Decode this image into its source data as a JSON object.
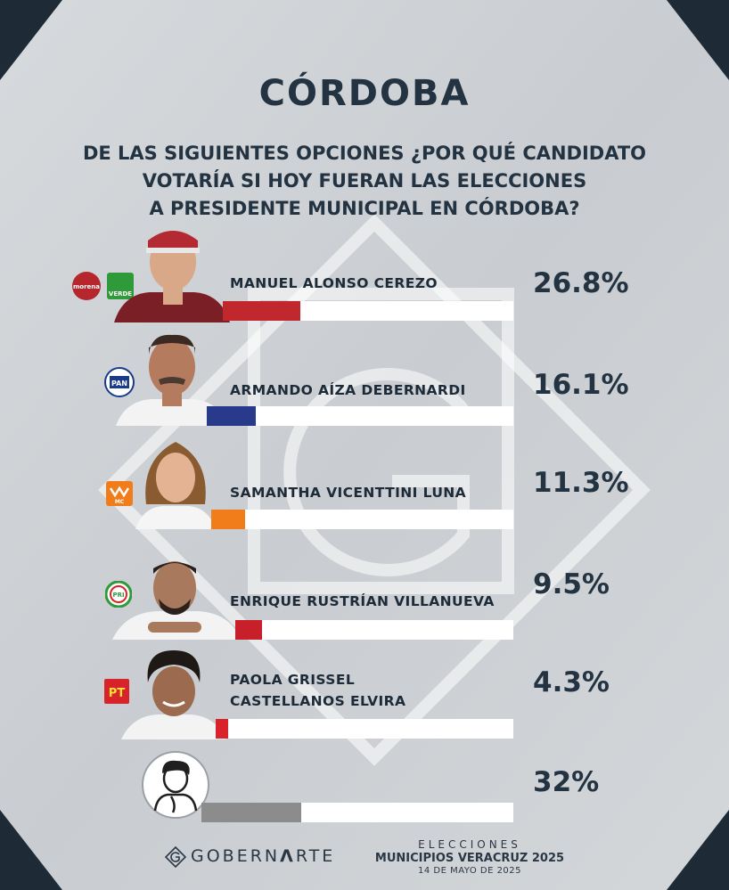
{
  "header": {
    "title": "CÓRDOBA",
    "question_lines": [
      "DE LAS SIGUIENTES OPCIONES ¿POR QUÉ CANDIDATO",
      "VOTARÍA SI HOY FUERAN LAS ELECCIONES",
      "A PRESIDENTE MUNICIPAL EN CÓRDOBA?"
    ]
  },
  "chart_data": {
    "type": "bar",
    "orientation": "horizontal",
    "title": "CÓRDOBA",
    "categories": [
      "MANUEL ALONSO CEREZO",
      "ARMANDO AÍZA DEBERNARDI",
      "SAMANTHA VICENTTINI LUNA",
      "ENRIQUE RUSTRÍAN VILLANUEVA",
      "PAOLA GRISSEL CASTELLANOS ELVIRA",
      ""
    ],
    "values": [
      26.8,
      16.1,
      11.3,
      9.5,
      4.3,
      32
    ],
    "value_labels": [
      "26.8%",
      "16.1%",
      "11.3%",
      "9.5%",
      "4.3%",
      "32%"
    ],
    "colors": [
      "#c0282d",
      "#283a8c",
      "#f07d1a",
      "#c8202a",
      "#d8232a",
      "#8c8c8c"
    ],
    "xlim": [
      0,
      100
    ]
  },
  "candidates": [
    {
      "name_lines": [
        "MANUEL ALONSO CEREZO"
      ],
      "pct": "26.8%",
      "parties": [
        "morena",
        "VERDE"
      ],
      "party_colors": [
        "#b5272d",
        "#2e9a3a"
      ]
    },
    {
      "name_lines": [
        "ARMANDO AÍZA DEBERNARDI"
      ],
      "pct": "16.1%",
      "parties": [
        "PAN"
      ],
      "party_colors": [
        "#1a3a8a"
      ]
    },
    {
      "name_lines": [
        "SAMANTHA VICENTTINI LUNA"
      ],
      "pct": "11.3%",
      "parties": [
        "MC"
      ],
      "party_colors": [
        "#f07d1a"
      ]
    },
    {
      "name_lines": [
        "ENRIQUE RUSTRÍAN VILLANUEVA"
      ],
      "pct": "9.5%",
      "parties": [
        "PRI"
      ],
      "party_colors": [
        "#d8232a"
      ]
    },
    {
      "name_lines": [
        "PAOLA GRISSEL",
        "CASTELLANOS ELVIRA"
      ],
      "pct": "4.3%",
      "parties": [
        "PT"
      ],
      "party_colors": [
        "#d8232a"
      ]
    },
    {
      "name_lines": [
        ""
      ],
      "pct": "32%",
      "parties": [],
      "party_colors": []
    }
  ],
  "footer": {
    "brand_prefix": "GOBERN",
    "brand_accent": "Λ",
    "brand_suffix": "RTE",
    "election_label": "ELECCIONES",
    "election_title": "MUNICIPIOS VERACRUZ 2025",
    "date": "14 DE MAYO DE 2025"
  },
  "colors": {
    "background": "#cfd3d7",
    "frame": "#1e2b36",
    "text": "#233342"
  }
}
